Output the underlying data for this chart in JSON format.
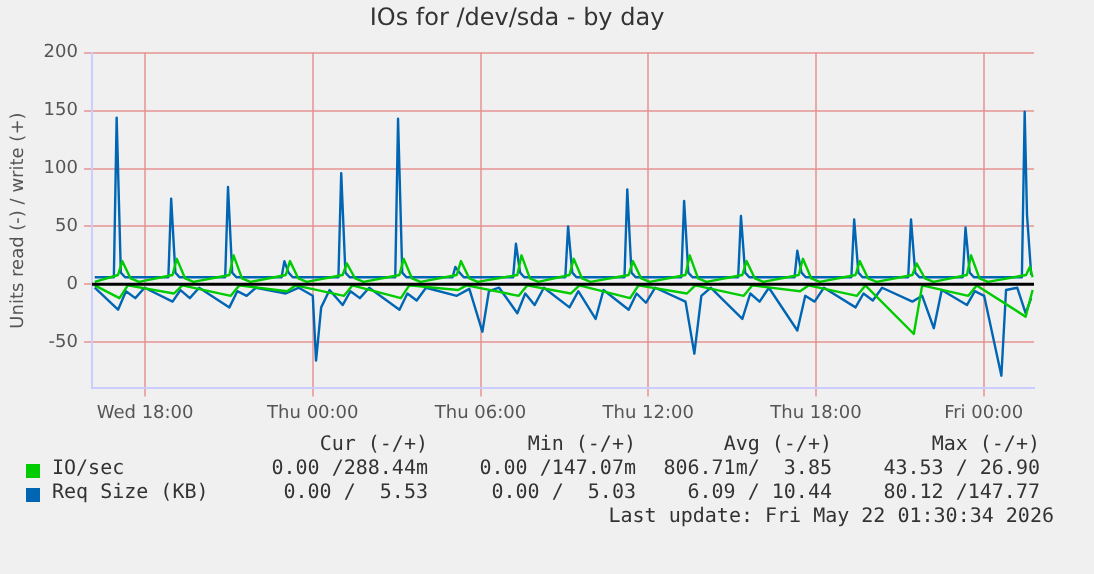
{
  "chart_data": {
    "type": "line",
    "title": "IOs for /dev/sda - by day",
    "ylabel": "Units read (-) / write (+)",
    "xlim": [
      "2026-05-20T16:06",
      "2026-05-22T01:48"
    ],
    "ylim": [
      -90,
      200
    ],
    "xticks": [
      {
        "value": "2026-05-20T18:00",
        "label": "Wed 18:00"
      },
      {
        "value": "2026-05-21T00:00",
        "label": "Thu 00:00"
      },
      {
        "value": "2026-05-21T06:00",
        "label": "Thu 06:00"
      },
      {
        "value": "2026-05-21T12:00",
        "label": "Thu 12:00"
      },
      {
        "value": "2026-05-21T18:00",
        "label": "Thu 18:00"
      },
      {
        "value": "2026-05-22T00:00",
        "label": "Fri 00:00"
      }
    ],
    "yticks": [
      -50,
      0,
      50,
      100,
      150,
      200
    ],
    "grid": true,
    "legend": "bottom",
    "marker": "none",
    "line_style": "solid",
    "ref_lines": [
      {
        "axis": "y",
        "value": 0,
        "color": "#000000"
      }
    ],
    "series": [
      {
        "name": "IO/sec",
        "color": "#00cc00",
        "x": [
          "2026-05-20T16:12",
          "2026-05-20T17:02",
          "2026-05-20T17:11",
          "2026-05-20T17:29",
          "2026-05-20T17:47",
          "2026-05-20T18:59",
          "2026-05-20T19:08",
          "2026-05-20T19:26",
          "2026-05-20T19:44",
          "2026-05-20T21:01",
          "2026-05-20T21:10",
          "2026-05-20T21:28",
          "2026-05-20T21:46",
          "2026-05-20T23:02",
          "2026-05-20T23:11",
          "2026-05-20T23:29",
          "2026-05-20T23:47",
          "2026-05-21T01:04",
          "2026-05-21T01:13",
          "2026-05-21T01:31",
          "2026-05-21T01:49",
          "2026-05-21T03:06",
          "2026-05-21T03:15",
          "2026-05-21T03:33",
          "2026-05-21T03:51",
          "2026-05-21T05:09",
          "2026-05-21T05:18",
          "2026-05-21T05:36",
          "2026-05-21T05:54",
          "2026-05-21T07:19",
          "2026-05-21T07:28",
          "2026-05-21T07:46",
          "2026-05-21T08:04",
          "2026-05-21T09:11",
          "2026-05-21T09:20",
          "2026-05-21T09:38",
          "2026-05-21T09:56",
          "2026-05-21T11:18",
          "2026-05-21T11:27",
          "2026-05-21T11:45",
          "2026-05-21T12:03",
          "2026-05-21T13:20",
          "2026-05-21T13:29",
          "2026-05-21T13:47",
          "2026-05-21T14:05",
          "2026-05-21T15:22",
          "2026-05-21T15:31",
          "2026-05-21T15:49",
          "2026-05-21T16:07",
          "2026-05-21T17:23",
          "2026-05-21T17:32",
          "2026-05-21T17:50",
          "2026-05-21T18:08",
          "2026-05-21T19:25",
          "2026-05-21T19:34",
          "2026-05-21T19:52",
          "2026-05-21T20:10",
          "2026-05-21T21:27",
          "2026-05-21T21:36",
          "2026-05-21T21:54",
          "2026-05-21T22:12",
          "2026-05-21T23:24",
          "2026-05-21T23:33",
          "2026-05-21T23:51",
          "2026-05-22T00:09",
          "2026-05-22T01:31",
          "2026-05-22T01:39",
          "2026-05-22T01:45"
        ],
        "values": [
          2,
          8,
          20,
          5,
          2,
          8,
          22,
          5,
          2,
          8,
          25,
          5,
          2,
          8,
          20,
          5,
          2,
          8,
          18,
          5,
          2,
          8,
          22,
          5,
          2,
          8,
          20,
          5,
          2,
          8,
          25,
          5,
          2,
          8,
          22,
          5,
          2,
          8,
          20,
          5,
          2,
          8,
          25,
          5,
          2,
          8,
          20,
          5,
          2,
          8,
          22,
          5,
          2,
          8,
          20,
          5,
          2,
          8,
          18,
          5,
          2,
          8,
          25,
          5,
          2,
          8,
          15,
          6
        ]
      },
      {
        "color": "#00cc00",
        "x": [
          "2026-05-20T16:12",
          "2026-05-20T17:05",
          "2026-05-20T17:23",
          "2026-05-20T19:02",
          "2026-05-20T19:20",
          "2026-05-20T21:04",
          "2026-05-20T21:22",
          "2026-05-20T23:05",
          "2026-05-20T23:23",
          "2026-05-21T01:07",
          "2026-05-21T01:25",
          "2026-05-21T03:09",
          "2026-05-21T03:27",
          "2026-05-21T05:12",
          "2026-05-21T05:30",
          "2026-05-21T07:22",
          "2026-05-21T07:40",
          "2026-05-21T09:14",
          "2026-05-21T09:32",
          "2026-05-21T11:21",
          "2026-05-21T11:39",
          "2026-05-21T13:23",
          "2026-05-21T13:41",
          "2026-05-21T15:25",
          "2026-05-21T15:43",
          "2026-05-21T17:26",
          "2026-05-21T17:44",
          "2026-05-21T19:28",
          "2026-05-21T19:46",
          "2026-05-21T21:30",
          "2026-05-21T21:48",
          "2026-05-21T23:27",
          "2026-05-21T23:45",
          "2026-05-22T01:30",
          "2026-05-22T01:45"
        ],
        "values": [
          -1,
          -12,
          -1,
          -8,
          -1,
          -10,
          -1,
          -6,
          -1,
          -10,
          -1,
          -12,
          -1,
          -5,
          -1,
          -10,
          -1,
          -8,
          -1,
          -12,
          -1,
          -8,
          -1,
          -10,
          -1,
          -6,
          -1,
          -10,
          -1,
          -43,
          -1,
          -10,
          -1,
          -28,
          -5
        ]
      },
      {
        "name": "Req Size (KB)",
        "color": "#0066b3",
        "x": [
          "2026-05-20T16:12",
          "2026-05-20T16:53",
          "2026-05-20T16:59",
          "2026-05-20T17:08",
          "2026-05-20T17:17",
          "2026-05-20T18:50",
          "2026-05-20T18:56",
          "2026-05-20T19:05",
          "2026-05-20T19:14",
          "2026-05-20T20:52",
          "2026-05-20T20:58",
          "2026-05-20T21:07",
          "2026-05-20T21:16",
          "2026-05-20T22:53",
          "2026-05-20T22:59",
          "2026-05-20T23:08",
          "2026-05-20T23:17",
          "2026-05-21T00:55",
          "2026-05-21T01:01",
          "2026-05-21T01:10",
          "2026-05-21T01:19",
          "2026-05-21T02:57",
          "2026-05-21T03:03",
          "2026-05-21T03:12",
          "2026-05-21T03:21",
          "2026-05-21T05:00",
          "2026-05-21T05:06",
          "2026-05-21T05:15",
          "2026-05-21T05:24",
          "2026-05-21T07:10",
          "2026-05-21T07:16",
          "2026-05-21T07:25",
          "2026-05-21T07:34",
          "2026-05-21T09:02",
          "2026-05-21T09:08",
          "2026-05-21T09:17",
          "2026-05-21T09:26",
          "2026-05-21T11:09",
          "2026-05-21T11:15",
          "2026-05-21T11:24",
          "2026-05-21T11:33",
          "2026-05-21T13:11",
          "2026-05-21T13:17",
          "2026-05-21T13:26",
          "2026-05-21T13:35",
          "2026-05-21T15:13",
          "2026-05-21T15:19",
          "2026-05-21T15:28",
          "2026-05-21T15:37",
          "2026-05-21T17:14",
          "2026-05-21T17:20",
          "2026-05-21T17:29",
          "2026-05-21T17:38",
          "2026-05-21T19:16",
          "2026-05-21T19:22",
          "2026-05-21T19:31",
          "2026-05-21T19:40",
          "2026-05-21T21:18",
          "2026-05-21T21:24",
          "2026-05-21T21:33",
          "2026-05-21T21:42",
          "2026-05-21T23:15",
          "2026-05-21T23:21",
          "2026-05-21T23:30",
          "2026-05-21T23:39",
          "2026-05-22T01:22",
          "2026-05-22T01:28",
          "2026-05-22T01:33",
          "2026-05-22T01:42"
        ],
        "values": [
          6,
          6,
          144,
          10,
          6,
          6,
          74,
          10,
          6,
          6,
          84,
          10,
          6,
          6,
          20,
          10,
          6,
          6,
          96,
          10,
          6,
          6,
          143,
          10,
          6,
          6,
          15,
          10,
          6,
          6,
          35,
          10,
          6,
          6,
          50,
          10,
          6,
          6,
          82,
          10,
          6,
          6,
          72,
          10,
          6,
          6,
          59,
          10,
          6,
          6,
          29,
          10,
          6,
          6,
          56,
          10,
          6,
          6,
          56,
          10,
          6,
          6,
          49,
          10,
          6,
          6,
          149,
          60,
          8
        ]
      },
      {
        "color": "#0066b3",
        "x": [
          "2026-05-20T16:12",
          "2026-05-20T17:02",
          "2026-05-20T17:19",
          "2026-05-20T17:39",
          "2026-05-20T17:59",
          "2026-05-20T18:59",
          "2026-05-20T19:16",
          "2026-05-20T19:36",
          "2026-05-20T19:56",
          "2026-05-20T21:01",
          "2026-05-20T21:18",
          "2026-05-20T21:38",
          "2026-05-20T21:58",
          "2026-05-20T23:02",
          "2026-05-20T23:30",
          "2026-05-21T00:00",
          "2026-05-21T00:07",
          "2026-05-21T00:18",
          "2026-05-21T00:36",
          "2026-05-21T01:04",
          "2026-05-21T01:21",
          "2026-05-21T01:41",
          "2026-05-21T02:01",
          "2026-05-21T03:06",
          "2026-05-21T03:23",
          "2026-05-21T03:43",
          "2026-05-21T04:03",
          "2026-05-21T05:09",
          "2026-05-21T05:36",
          "2026-05-21T06:04",
          "2026-05-21T06:18",
          "2026-05-21T06:40",
          "2026-05-21T07:19",
          "2026-05-21T07:36",
          "2026-05-21T07:56",
          "2026-05-21T08:16",
          "2026-05-21T09:11",
          "2026-05-21T09:30",
          "2026-05-21T10:07",
          "2026-05-21T10:24",
          "2026-05-21T11:18",
          "2026-05-21T11:35",
          "2026-05-21T11:55",
          "2026-05-21T12:15",
          "2026-05-21T13:20",
          "2026-05-21T13:39",
          "2026-05-21T13:54",
          "2026-05-21T14:14",
          "2026-05-21T15:22",
          "2026-05-21T15:39",
          "2026-05-21T15:59",
          "2026-05-21T16:19",
          "2026-05-21T17:20",
          "2026-05-21T17:37",
          "2026-05-21T17:57",
          "2026-05-21T18:17",
          "2026-05-21T19:25",
          "2026-05-21T19:42",
          "2026-05-21T20:02",
          "2026-05-21T20:22",
          "2026-05-21T21:27",
          "2026-05-21T21:48",
          "2026-05-21T22:13",
          "2026-05-21T22:30",
          "2026-05-21T23:24",
          "2026-05-21T23:41",
          "2026-05-22T00:01",
          "2026-05-22T00:38",
          "2026-05-22T00:48",
          "2026-05-22T01:12",
          "2026-05-22T01:30",
          "2026-05-22T01:42"
        ],
        "values": [
          -3,
          -22,
          -6,
          -12,
          -3,
          -15,
          -5,
          -12,
          -3,
          -20,
          -6,
          -10,
          -3,
          -8,
          -3,
          -10,
          -66,
          -20,
          -5,
          -18,
          -6,
          -12,
          -3,
          -22,
          -8,
          -14,
          -3,
          -10,
          -4,
          -41,
          -6,
          -3,
          -25,
          -8,
          -18,
          -3,
          -20,
          -6,
          -30,
          -5,
          -22,
          -8,
          -16,
          -3,
          -15,
          -60,
          -10,
          -3,
          -30,
          -8,
          -15,
          -3,
          -40,
          -10,
          -15,
          -3,
          -20,
          -8,
          -14,
          -3,
          -15,
          -10,
          -38,
          -5,
          -18,
          -6,
          -10,
          -79,
          -5,
          -3,
          -25,
          -12
        ]
      }
    ],
    "annotations": [
      "Cur (-/+)",
      "Min (-/+)",
      "Avg (-/+)",
      "Max (-/+)",
      "0.00 /288.44m",
      "0.00 /147.07m",
      "806.71m/  3.85",
      "43.53 / 26.90",
      "0.00 /  5.53",
      "0.00 /  5.03",
      "6.09 / 10.44",
      "80.12 /147.77",
      "Last update: Fri May 22 01:30:34 2026"
    ]
  }
}
